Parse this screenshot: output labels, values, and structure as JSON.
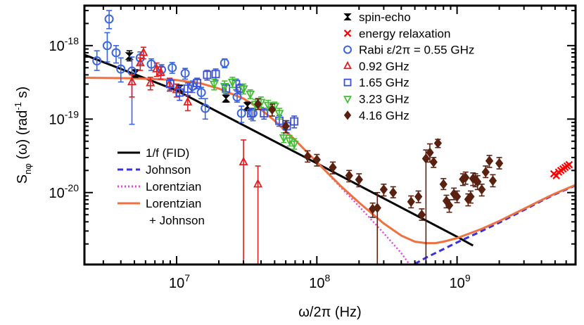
{
  "chart_data": {
    "type": "scatter",
    "x_scale": "log",
    "y_scale": "log",
    "xlim": [
      2200000.0,
      7000000000.0
    ],
    "ylim": [
      1.05e-21,
      3.5e-18
    ],
    "xlabel": "ω/2π (Hz)",
    "ylabel": {
      "main": "S",
      "sub": "nφ",
      "mid": " (ω)  (rad",
      "sup": "-1",
      "end": " s)"
    },
    "x_ticks": [
      {
        "value": 10000000.0,
        "base": "10",
        "exp": "7"
      },
      {
        "value": 100000000.0,
        "base": "10",
        "exp": "8"
      },
      {
        "value": 1000000000.0,
        "base": "10",
        "exp": "9"
      }
    ],
    "y_ticks": [
      {
        "value": 1e-18,
        "base": "10",
        "exp": "-18"
      },
      {
        "value": 1e-19,
        "base": "10",
        "exp": "-19"
      },
      {
        "value": 1e-20,
        "base": "10",
        "exp": "-20"
      }
    ],
    "series": [
      {
        "name": "spin-echo",
        "marker": "hourglass",
        "color": "#000000",
        "points": [
          [
            4600000.0,
            7.2e-19,
            8.5e-19,
            6.2e-19
          ],
          [
            5100000.0,
            4.2e-19,
            4.7e-19,
            3.7e-19
          ],
          [
            10500000.0,
            2.6e-19,
            2.9e-19,
            2.3e-19
          ],
          [
            22500000.0,
            1.9e-19,
            2.1e-19,
            1.7e-19
          ],
          [
            32000000.0,
            1.5e-19,
            1.7e-19,
            1.3e-19
          ]
        ]
      },
      {
        "name": "energy relaxation",
        "marker": "x",
        "color": "#ff0000",
        "points": [
          [
            4900000000.0,
            1.8e-20,
            1.8e-20,
            1.8e-20
          ],
          [
            5100000000.0,
            1.7e-20,
            1.7e-20,
            1.7e-20
          ],
          [
            5300000000.0,
            1.9e-20,
            1.9e-20,
            1.9e-20
          ],
          [
            5500000000.0,
            2e-20,
            2e-20,
            2e-20
          ],
          [
            5700000000.0,
            2.1e-20,
            2.1e-20,
            2.1e-20
          ],
          [
            5900000000.0,
            2.2e-20,
            2.2e-20,
            2.2e-20
          ],
          [
            6100000000.0,
            2.3e-20,
            2.3e-20,
            2.3e-20
          ],
          [
            6300000000.0,
            2.4e-20,
            2.4e-20,
            2.4e-20
          ]
        ]
      },
      {
        "name": "Rabi ε/2π = 0.55 GHz",
        "marker": "circle",
        "color": "#3a66e0",
        "points": [
          [
            2700000.0,
            6.2e-19,
            8.5e-19,
            4.6e-19
          ],
          [
            3200000.0,
            1e-18,
            1.5e-18,
            6e-19
          ],
          [
            3300000.0,
            2.3e-18,
            3e-18,
            1.7e-18
          ],
          [
            3700000.0,
            8e-19,
            1e-18,
            5.8e-19
          ],
          [
            4000000.0,
            4.8e-19,
            6.8e-19,
            3.2e-19
          ],
          [
            4800000.0,
            4.5e-19,
            7e-19,
            8.5e-20
          ],
          [
            5500000.0,
            6.8e-19,
            8.2e-19,
            5.6e-19
          ],
          [
            6600000.0,
            5.6e-19,
            6.6e-19,
            4.6e-19
          ],
          [
            7800000.0,
            4.7e-19,
            5.5e-19,
            3.9e-19
          ],
          [
            9300000.0,
            5e-19,
            5.9e-19,
            4.2e-19
          ],
          [
            11500000.0,
            4.2e-19,
            4.9e-19,
            3.5e-19
          ],
          [
            13000000.0,
            2.8e-19,
            3.3e-19,
            2.3e-19
          ],
          [
            15000000.0,
            2.3e-19,
            2.7e-19,
            1.9e-19
          ],
          [
            16000000.0,
            1.4e-19,
            1.9e-19,
            1e-19
          ],
          [
            22000000.0,
            5.8e-19,
            6.6e-19,
            5e-19
          ],
          [
            27000000.0,
            2e-19,
            2.4e-19,
            1.7e-19
          ],
          [
            29000000.0,
            1.2e-19,
            1.5e-19,
            9e-20
          ],
          [
            35000000.0,
            1.2e-19,
            1.4e-19,
            9.5e-20
          ]
        ]
      },
      {
        "name": "0.92 GHz",
        "marker": "triangle-up",
        "color": "#e02020",
        "points": [
          [
            4800000.0,
            3.2e-19,
            4e-19,
            2e-19
          ],
          [
            5500000.0,
            5.8e-19,
            6.8e-19,
            4.6e-19
          ],
          [
            5800000.0,
            8e-19,
            9.5e-19,
            6.6e-19
          ],
          [
            6500000.0,
            3.1e-19,
            3.7e-19,
            2.5e-19
          ],
          [
            7200000.0,
            4.8e-19,
            5.8e-19,
            3.8e-19
          ],
          [
            7700000.0,
            4.3e-19,
            5.1e-19,
            3.5e-19
          ],
          [
            8900000.0,
            3e-19,
            3.6e-19,
            2.4e-19
          ],
          [
            10000000.0,
            2.5e-19,
            3e-19,
            2e-19
          ],
          [
            12000000.0,
            1.7e-19,
            2.1e-19,
            1.3e-19
          ],
          [
            30000000.0,
            2.6e-20,
            5.2e-20,
            1.05e-21
          ],
          [
            38000000.0,
            1.3e-20,
            2.3e-20,
            1.05e-21
          ]
        ]
      },
      {
        "name": "1.65 GHz",
        "marker": "square",
        "color": "#3a50d8",
        "points": [
          [
            9000000.0,
            3e-19,
            3.5e-19,
            2.5e-19
          ],
          [
            10500000.0,
            2.3e-19,
            2.8e-19,
            1.8e-19
          ],
          [
            12000000.0,
            2.6e-19,
            3.1e-19,
            2.1e-19
          ],
          [
            14000000.0,
            3.1e-19,
            3.6e-19,
            2.6e-19
          ],
          [
            16500000.0,
            4e-19,
            4.6e-19,
            3.4e-19
          ],
          [
            19000000.0,
            4.1e-19,
            4.8e-19,
            3.4e-19
          ],
          [
            22500000.0,
            2.6e-19,
            3e-19,
            2.2e-19
          ],
          [
            26500000.0,
            3e-19,
            3.5e-19,
            2.5e-19
          ],
          [
            28500000.0,
            2.6e-19,
            3e-19,
            2.2e-19
          ],
          [
            34000000.0,
            1.2e-19,
            1.4e-19,
            1e-19
          ],
          [
            42000000.0,
            1.2e-19,
            1.4e-19,
            1e-19
          ],
          [
            54000000.0,
            9.5e-20,
            1.12e-19,
            8e-20
          ],
          [
            61000000.0,
            8e-20,
            9.5e-20,
            6.5e-20
          ],
          [
            69000000.0,
            9.3e-20,
            1.1e-19,
            7.6e-20
          ]
        ]
      },
      {
        "name": "3.23 GHz",
        "marker": "triangle-down",
        "color": "#40c030",
        "points": [
          [
            18500000.0,
            3e-19,
            3.5e-19,
            2.5e-19
          ],
          [
            22000000.0,
            2.8e-19,
            3.3e-19,
            2.3e-19
          ],
          [
            25000000.0,
            3.2e-19,
            3.7e-19,
            2.7e-19
          ],
          [
            30000000.0,
            2.6e-19,
            3e-19,
            2.2e-19
          ],
          [
            33500000.0,
            2.2e-19,
            2.5e-19,
            1.9e-19
          ],
          [
            36500000.0,
            1.6e-19,
            1.85e-19,
            1.35e-19
          ],
          [
            40000000.0,
            1.7e-19,
            2e-19,
            1.45e-19
          ],
          [
            45000000.0,
            1.55e-19,
            1.8e-19,
            1.3e-19
          ],
          [
            50000000.0,
            1.5e-19,
            1.7e-19,
            1.3e-19
          ],
          [
            54000000.0,
            1.2e-19,
            1.4e-19,
            1e-19
          ],
          [
            58000000.0,
            5.6e-20,
            6.5e-20,
            4.8e-20
          ],
          [
            64000000.0,
            5.1e-20,
            6e-20,
            4.3e-20
          ],
          [
            69000000.0,
            4.6e-20,
            5.4e-20,
            3.9e-20
          ]
        ]
      },
      {
        "name": "4.16 GHz",
        "marker": "diamond",
        "color": "#5a2010",
        "points": [
          [
            38000000.0,
            1.6e-19,
            1.9e-19,
            1.35e-19
          ],
          [
            48000000.0,
            1.35e-19,
            1.6e-19,
            1.1e-19
          ],
          [
            60000000.0,
            8e-20,
            9.5e-20,
            6.5e-20
          ],
          [
            86000000.0,
            3.1e-20,
            3.7e-20,
            2.6e-20
          ],
          [
            100000000.0,
            2.8e-20,
            3.3e-20,
            2.3e-20
          ],
          [
            130000000.0,
            2.2e-20,
            2.6e-20,
            1.8e-20
          ],
          [
            170000000.0,
            1.7e-20,
            2e-20,
            1.4e-20
          ],
          [
            200000000.0,
            1.5e-20,
            1.8e-20,
            1.2e-20
          ],
          [
            250000000.0,
            6e-21,
            7.2e-21,
            4.6e-21
          ],
          [
            270000000.0,
            6.2e-21,
            1e-20,
            1.05e-21
          ],
          [
            300000000.0,
            1.1e-20,
            1.3e-20,
            9e-21
          ],
          [
            350000000.0,
            1e-20,
            1.2e-20,
            8.5e-21
          ],
          [
            470000000.0,
            7.5e-21,
            9e-21,
            6.2e-21
          ],
          [
            530000000.0,
            8.8e-21,
            1.05e-20,
            7.3e-21
          ],
          [
            560000000.0,
            5e-21,
            6e-21,
            4.2e-21
          ],
          [
            600000000.0,
            2.9e-20,
            3.8e-20,
            1.05e-21
          ],
          [
            640000000.0,
            3.5e-20,
            4.6e-20,
            2.6e-20
          ],
          [
            680000000.0,
            2.6e-20,
            3e-20,
            2.2e-20
          ],
          [
            730000000.0,
            4.7e-20,
            5.3e-20,
            4.1e-20
          ],
          [
            800000000.0,
            1.3e-20,
            1.55e-20,
            1.1e-20
          ],
          [
            840000000.0,
            7.7e-21,
            9.2e-21,
            6.2e-21
          ],
          [
            880000000.0,
            6.7e-21,
            8e-21,
            5.4e-21
          ],
          [
            950000000.0,
            9.6e-21,
            1.15e-20,
            8e-21
          ],
          [
            1000000000.0,
            8.8e-21,
            1.05e-20,
            7.3e-21
          ],
          [
            1100000000.0,
            1.52e-20,
            1.8e-20,
            1.25e-20
          ],
          [
            1150000000.0,
            1.6e-20,
            1.9e-20,
            1.3e-20
          ],
          [
            1200000000.0,
            8.1e-21,
            9.6e-21,
            6.6e-21
          ],
          [
            1250000000.0,
            8.8e-21,
            1.05e-20,
            7.2e-21
          ],
          [
            1300000000.0,
            1.55e-20,
            1.85e-20,
            1.25e-20
          ],
          [
            1350000000.0,
            1.5e-20,
            1.8e-20,
            1.2e-20
          ],
          [
            1400000000.0,
            1.4e-20,
            1.7e-20,
            1.1e-20
          ],
          [
            1500000000.0,
            1.1e-20,
            1.3e-20,
            9e-21
          ],
          [
            1600000000.0,
            1.9e-20,
            2.3e-20,
            1.6e-20
          ],
          [
            1700000000.0,
            2.7e-20,
            3.2e-20,
            2.2e-20
          ],
          [
            1800000000.0,
            1.45e-20,
            1.75e-20,
            1.2e-20
          ],
          [
            2000000000.0,
            2.5e-20,
            3e-20,
            2.1e-20
          ]
        ]
      }
    ],
    "curves": [
      {
        "name": "1/f (FID)",
        "style": "solid",
        "color": "#000000",
        "x": [
          2200000.0,
          10000000.0,
          100000000.0,
          1000000000.0,
          1300000000.0
        ],
        "y": [
          7.5e-19,
          2.45e-19,
          2.5e-20,
          2.5e-21,
          1.9e-21
        ]
      },
      {
        "name": "Johnson",
        "style": "dashed",
        "color": "#3a30e0",
        "x": [
          500000000.0,
          600000000.0,
          700000000.0,
          800000000.0,
          1000000000.0,
          1500000000.0,
          2000000000.0,
          3000000000.0,
          4000000000.0,
          5000000000.0,
          7000000000.0
        ],
        "y": [
          1.07e-21,
          1.3e-21,
          1.5e-21,
          1.7e-21,
          2.1e-21,
          3e-21,
          3.9e-21,
          5.8e-21,
          7.7e-21,
          9.5e-21,
          1.25e-20
        ]
      },
      {
        "name": "Lorentzian",
        "style": "dotted",
        "color": "#e040e0",
        "x": [
          2200000.0,
          5000000.0,
          10000000.0,
          15000000.0,
          20000000.0,
          30000000.0,
          40000000.0,
          50000000.0,
          70000000.0,
          100000000.0,
          150000000.0,
          200000000.0,
          300000000.0,
          400000000.0,
          450000000.0
        ],
        "y": [
          3.65e-19,
          3.6e-19,
          3.4e-19,
          3.05e-19,
          2.6e-19,
          1.9e-19,
          1.35e-19,
          9.5e-20,
          5.2e-20,
          2.6e-20,
          1.15e-20,
          6.5e-21,
          2.8e-21,
          1.5e-21,
          1.1e-21
        ]
      },
      {
        "name": "Lorentzian + Johnson",
        "style": "solid",
        "color": "#f07040",
        "x": [
          2200000.0,
          5000000.0,
          10000000.0,
          15000000.0,
          20000000.0,
          30000000.0,
          40000000.0,
          50000000.0,
          70000000.0,
          100000000.0,
          150000000.0,
          200000000.0,
          300000000.0,
          400000000.0,
          500000000.0,
          600000000.0,
          700000000.0,
          800000000.0,
          1000000000.0,
          1500000000.0,
          2000000000.0,
          3000000000.0,
          4000000000.0,
          5000000000.0,
          7000000000.0
        ],
        "y": [
          3.65e-19,
          3.6e-19,
          3.4e-19,
          3.05e-19,
          2.6e-19,
          1.9e-19,
          1.35e-19,
          9.5e-20,
          5.2e-20,
          2.6e-20,
          1.2e-20,
          7.3e-21,
          3.8e-21,
          2.6e-21,
          2.15e-21,
          2.05e-21,
          2.05e-21,
          2.15e-21,
          2.4e-21,
          3.2e-21,
          4.1e-21,
          6e-21,
          7.9e-21,
          9.7e-21,
          1.27e-20
        ]
      }
    ],
    "legend_right": [
      {
        "label": "spin-echo",
        "marker": "hourglass",
        "color": "#000000"
      },
      {
        "label": "energy relaxation",
        "marker": "x",
        "color": "#ff0000"
      },
      {
        "label": "Rabi ε/2π = 0.55 GHz",
        "marker": "circle",
        "color": "#3a66e0"
      },
      {
        "label": "0.92 GHz",
        "marker": "triangle-up",
        "color": "#e02020"
      },
      {
        "label": "1.65 GHz",
        "marker": "square",
        "color": "#3a50d8"
      },
      {
        "label": "3.23 GHz",
        "marker": "triangle-down",
        "color": "#40c030"
      },
      {
        "label": "4.16 GHz",
        "marker": "diamond",
        "color": "#5a2010"
      }
    ],
    "legend_left": [
      {
        "label": "1/f (FID)",
        "style": "solid",
        "color": "#000000"
      },
      {
        "label": "Johnson",
        "style": "dashed",
        "color": "#3a30e0"
      },
      {
        "label": "Lorentzian",
        "style": "dotted",
        "color": "#e040e0"
      },
      {
        "label": "Lorentzian",
        "style": "solid",
        "color": "#f07040"
      },
      {
        "label": "+ Johnson",
        "style": "none",
        "color": "#f07040"
      }
    ]
  }
}
